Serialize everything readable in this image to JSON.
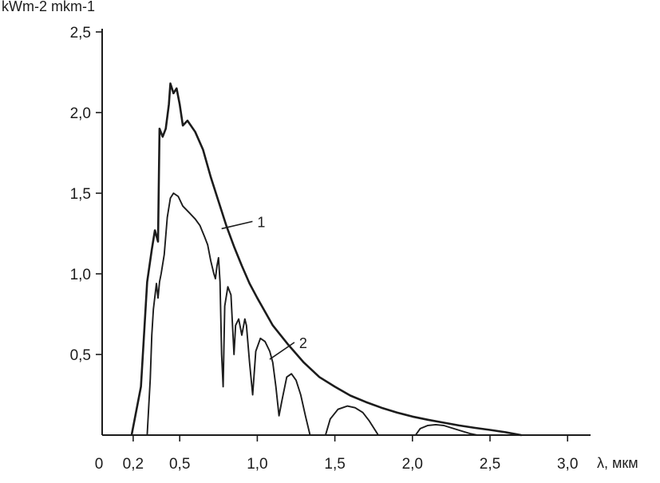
{
  "chart_data": {
    "type": "line",
    "title": "",
    "ylabel": "kWm-2 mkm-1",
    "xlabel": "λ, мкм",
    "xlim": [
      0,
      3.5
    ],
    "ylim": [
      0,
      2.5
    ],
    "grid": false,
    "legend": "none",
    "y_ticks": [
      {
        "value": 0.5,
        "label": "0,5"
      },
      {
        "value": 1.0,
        "label": "1,0"
      },
      {
        "value": 1.5,
        "label": "1,5"
      },
      {
        "value": 2.0,
        "label": "2,0"
      },
      {
        "value": 2.5,
        "label": "2,5"
      }
    ],
    "x_ticks": [
      {
        "value": 0,
        "label": "0"
      },
      {
        "value": 0.2,
        "label": "0,2"
      },
      {
        "value": 0.5,
        "label": "0,5"
      },
      {
        "value": 1.0,
        "label": "1,0"
      },
      {
        "value": 1.5,
        "label": "1,5"
      },
      {
        "value": 2.0,
        "label": "2,0"
      },
      {
        "value": 2.5,
        "label": "2,5"
      },
      {
        "value": 3.0,
        "label": "3,0"
      }
    ],
    "series": [
      {
        "name": "1",
        "points": [
          [
            0.19,
            0.0
          ],
          [
            0.25,
            0.3
          ],
          [
            0.29,
            0.95
          ],
          [
            0.32,
            1.15
          ],
          [
            0.34,
            1.27
          ],
          [
            0.36,
            1.2
          ],
          [
            0.37,
            1.9
          ],
          [
            0.39,
            1.85
          ],
          [
            0.41,
            1.9
          ],
          [
            0.43,
            2.05
          ],
          [
            0.44,
            2.18
          ],
          [
            0.46,
            2.12
          ],
          [
            0.48,
            2.15
          ],
          [
            0.5,
            2.05
          ],
          [
            0.52,
            1.92
          ],
          [
            0.55,
            1.95
          ],
          [
            0.6,
            1.88
          ],
          [
            0.65,
            1.77
          ],
          [
            0.7,
            1.6
          ],
          [
            0.75,
            1.45
          ],
          [
            0.8,
            1.3
          ],
          [
            0.85,
            1.17
          ],
          [
            0.9,
            1.05
          ],
          [
            0.95,
            0.94
          ],
          [
            1.0,
            0.85
          ],
          [
            1.1,
            0.68
          ],
          [
            1.2,
            0.56
          ],
          [
            1.3,
            0.45
          ],
          [
            1.4,
            0.36
          ],
          [
            1.5,
            0.3
          ],
          [
            1.6,
            0.245
          ],
          [
            1.7,
            0.205
          ],
          [
            1.8,
            0.17
          ],
          [
            1.9,
            0.14
          ],
          [
            2.0,
            0.115
          ],
          [
            2.1,
            0.095
          ],
          [
            2.2,
            0.077
          ],
          [
            2.3,
            0.06
          ],
          [
            2.4,
            0.045
          ],
          [
            2.5,
            0.032
          ],
          [
            2.6,
            0.018
          ],
          [
            2.7,
            0.0
          ]
        ]
      },
      {
        "name": "2",
        "segments": [
          [
            [
              0.29,
              0.0
            ],
            [
              0.31,
              0.35
            ],
            [
              0.32,
              0.62
            ],
            [
              0.33,
              0.78
            ],
            [
              0.35,
              0.94
            ],
            [
              0.36,
              0.85
            ],
            [
              0.37,
              0.95
            ],
            [
              0.38,
              1.0
            ],
            [
              0.4,
              1.12
            ],
            [
              0.42,
              1.35
            ],
            [
              0.44,
              1.47
            ],
            [
              0.46,
              1.5
            ],
            [
              0.49,
              1.48
            ],
            [
              0.52,
              1.42
            ],
            [
              0.56,
              1.38
            ],
            [
              0.6,
              1.34
            ],
            [
              0.63,
              1.3
            ],
            [
              0.66,
              1.23
            ],
            [
              0.68,
              1.18
            ],
            [
              0.7,
              1.08
            ],
            [
              0.72,
              1.0
            ],
            [
              0.73,
              0.97
            ],
            [
              0.74,
              1.05
            ],
            [
              0.75,
              1.1
            ],
            [
              0.76,
              0.95
            ],
            [
              0.77,
              0.5
            ],
            [
              0.78,
              0.3
            ],
            [
              0.79,
              0.8
            ],
            [
              0.81,
              0.92
            ],
            [
              0.83,
              0.87
            ],
            [
              0.85,
              0.5
            ],
            [
              0.86,
              0.68
            ],
            [
              0.88,
              0.72
            ],
            [
              0.9,
              0.62
            ],
            [
              0.92,
              0.72
            ],
            [
              0.93,
              0.68
            ],
            [
              0.95,
              0.45
            ],
            [
              0.97,
              0.25
            ],
            [
              0.99,
              0.52
            ],
            [
              1.02,
              0.6
            ],
            [
              1.05,
              0.58
            ],
            [
              1.08,
              0.52
            ],
            [
              1.1,
              0.45
            ],
            [
              1.12,
              0.3
            ],
            [
              1.14,
              0.12
            ],
            [
              1.16,
              0.22
            ],
            [
              1.19,
              0.36
            ],
            [
              1.22,
              0.38
            ],
            [
              1.25,
              0.34
            ],
            [
              1.28,
              0.25
            ],
            [
              1.31,
              0.12
            ],
            [
              1.34,
              0.0
            ]
          ],
          [
            [
              1.44,
              0.0
            ],
            [
              1.47,
              0.1
            ],
            [
              1.52,
              0.16
            ],
            [
              1.58,
              0.18
            ],
            [
              1.63,
              0.17
            ],
            [
              1.68,
              0.14
            ],
            [
              1.72,
              0.09
            ],
            [
              1.76,
              0.03
            ],
            [
              1.78,
              0.0
            ]
          ],
          [
            [
              2.02,
              0.0
            ],
            [
              2.05,
              0.04
            ],
            [
              2.1,
              0.06
            ],
            [
              2.15,
              0.065
            ],
            [
              2.2,
              0.06
            ],
            [
              2.25,
              0.045
            ],
            [
              2.3,
              0.03
            ],
            [
              2.37,
              0.01
            ],
            [
              2.42,
              0.0
            ]
          ]
        ]
      }
    ],
    "annotations": [
      {
        "label": "1",
        "target": [
          0.77,
          1.28
        ],
        "text_at": [
          1.0,
          1.31
        ]
      },
      {
        "label": "2",
        "target": [
          1.08,
          0.47
        ],
        "text_at": [
          1.27,
          0.56
        ]
      }
    ]
  }
}
